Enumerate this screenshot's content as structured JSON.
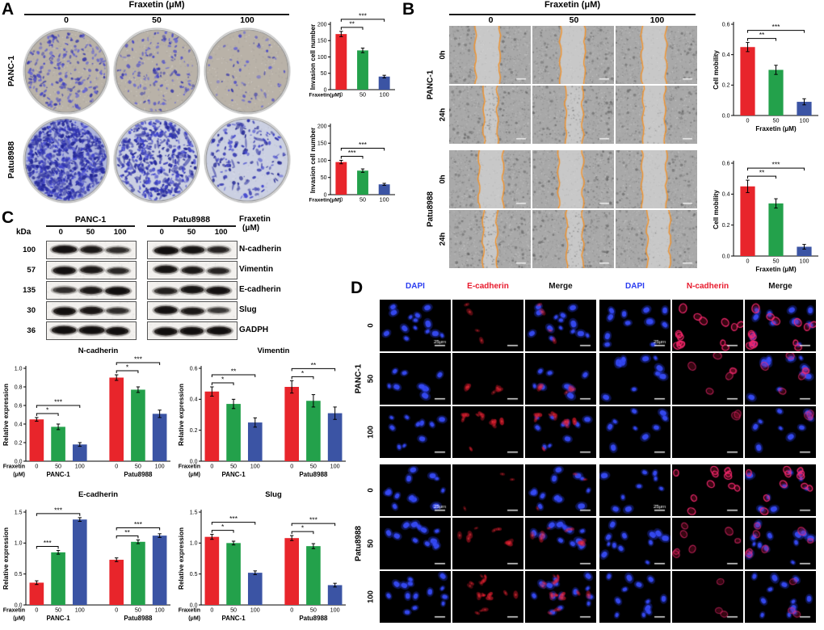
{
  "colors": {
    "bar_red": "#e8252b",
    "bar_green": "#23a14b",
    "bar_blue": "#3b54a4",
    "dapi_blue": "#2a3cf0",
    "marker_red": "#e8192c",
    "wound_orange": "#f2932c"
  },
  "doses": [
    "0",
    "50",
    "100"
  ],
  "cell_lines": [
    "PANC-1",
    "Patu8988"
  ],
  "panelA": {
    "label": "A",
    "title": "Fraxetin (μM)",
    "rows": [
      "PANC-1",
      "Patu8988"
    ]
  },
  "panelB": {
    "label": "B",
    "title": "Fraxetin (μM)",
    "timepoints": [
      "0h",
      "24h"
    ]
  },
  "panelC": {
    "label": "C",
    "col_headers": [
      "PANC-1",
      "Patu8988"
    ],
    "fraxetin_label": [
      "Fraxetin",
      "(μM)"
    ],
    "kda_label": "kDa",
    "lanes": [
      "0",
      "50",
      "100"
    ],
    "blots": [
      {
        "kda": "100",
        "protein": "N-cadherin",
        "intensity": [
          [
            0.85,
            0.7,
            0.45
          ],
          [
            0.9,
            0.8,
            0.55
          ]
        ]
      },
      {
        "kda": "57",
        "protein": "Vimentin",
        "intensity": [
          [
            0.85,
            0.7,
            0.5
          ],
          [
            0.8,
            0.7,
            0.55
          ]
        ]
      },
      {
        "kda": "135",
        "protein": "E-cadherin",
        "intensity": [
          [
            0.45,
            0.7,
            0.9
          ],
          [
            0.6,
            0.8,
            0.85
          ]
        ]
      },
      {
        "kda": "30",
        "protein": "Slug",
        "intensity": [
          [
            0.9,
            0.75,
            0.45
          ],
          [
            0.85,
            0.7,
            0.35
          ]
        ]
      },
      {
        "kda": "36",
        "protein": "GADPH",
        "intensity": [
          [
            0.9,
            0.9,
            0.9
          ],
          [
            0.9,
            0.9,
            0.9
          ]
        ]
      }
    ]
  },
  "panelD": {
    "label": "D",
    "col_headers": [
      {
        "label": "DAPI",
        "color": "#2a3cf0"
      },
      {
        "label": "E-cadherin",
        "color": "#e8192c"
      },
      {
        "label": "Merge",
        "color": "#111111"
      },
      {
        "label": "DAPI",
        "color": "#2a3cf0"
      },
      {
        "label": "N-cadherin",
        "color": "#e8192c"
      },
      {
        "label": "Merge",
        "color": "#111111"
      }
    ],
    "scale_label": "25μm"
  },
  "chart_data": [
    {
      "id": "invasion-panc1",
      "type": "bar",
      "cell_line": "PANC-1",
      "ylabel": "Invasion cell number",
      "ylim": [
        0,
        200
      ],
      "yticks": [
        "0",
        "50",
        "100",
        "150",
        "200"
      ],
      "categories": [
        "0",
        "50",
        "100"
      ],
      "values": [
        170,
        120,
        40
      ],
      "errors": [
        8,
        7,
        4
      ],
      "xlabel": "Fraxetin(μM)",
      "xlabel_pos": "inline",
      "sig": [
        {
          "a": 0,
          "b": 1,
          "label": "**"
        },
        {
          "a": 0,
          "b": 2,
          "label": "***"
        }
      ]
    },
    {
      "id": "invasion-patu8988",
      "type": "bar",
      "cell_line": "Patu8988",
      "ylabel": "Invasion cell number",
      "ylim": [
        0,
        200
      ],
      "yticks": [
        "0",
        "50",
        "100",
        "150",
        "200"
      ],
      "categories": [
        "0",
        "50",
        "100"
      ],
      "values": [
        95,
        70,
        30
      ],
      "errors": [
        5,
        5,
        3
      ],
      "xlabel": "Fraxetin(μM)",
      "xlabel_pos": "inline",
      "sig": [
        {
          "a": 0,
          "b": 1,
          "label": "***"
        },
        {
          "a": 0,
          "b": 2,
          "label": "***"
        }
      ]
    },
    {
      "id": "mobility-panc1",
      "type": "bar",
      "cell_line": "PANC-1",
      "ylabel": "Cell mobility",
      "ylim": [
        0,
        0.6
      ],
      "yticks": [
        "0.0",
        "0.2",
        "0.4",
        "0.6"
      ],
      "categories": [
        "0",
        "50",
        "100"
      ],
      "values": [
        0.45,
        0.3,
        0.09
      ],
      "errors": [
        0.03,
        0.03,
        0.02
      ],
      "xlabel": "Fraxetin (μM)",
      "xlabel_pos": "below",
      "sig": [
        {
          "a": 0,
          "b": 1,
          "label": "**"
        },
        {
          "a": 0,
          "b": 2,
          "label": "***"
        }
      ]
    },
    {
      "id": "mobility-patu8988",
      "type": "bar",
      "cell_line": "Patu8988",
      "ylabel": "Cell mobility",
      "ylim": [
        0,
        0.6
      ],
      "yticks": [
        "0.0",
        "0.2",
        "0.4",
        "0.6"
      ],
      "categories": [
        "0",
        "50",
        "100"
      ],
      "values": [
        0.45,
        0.34,
        0.06
      ],
      "errors": [
        0.04,
        0.03,
        0.015
      ],
      "xlabel": "Fraxetin (μM)",
      "xlabel_pos": "below",
      "sig": [
        {
          "a": 0,
          "b": 1,
          "label": "**"
        },
        {
          "a": 0,
          "b": 2,
          "label": "***"
        }
      ]
    },
    {
      "id": "expr-n-cadherin",
      "type": "bar",
      "title": "N-cadherin",
      "ylabel": "Relative expression",
      "ylim": [
        0,
        1.0
      ],
      "yticks": [
        "0.0",
        "0.2",
        "0.4",
        "0.6",
        "0.8",
        "1.0"
      ],
      "categories": [
        "0",
        "50",
        "100"
      ],
      "xlabel_lines": [
        "Fraxetin",
        "(μM)"
      ],
      "groups": [
        {
          "name": "PANC-1",
          "values": [
            0.45,
            0.37,
            0.18
          ],
          "errors": [
            0.02,
            0.03,
            0.02
          ],
          "sig": [
            {
              "a": 0,
              "b": 1,
              "label": "*"
            },
            {
              "a": 0,
              "b": 2,
              "label": "***"
            }
          ]
        },
        {
          "name": "Patu8988",
          "values": [
            0.9,
            0.77,
            0.51
          ],
          "errors": [
            0.03,
            0.03,
            0.04
          ],
          "sig": [
            {
              "a": 0,
              "b": 1,
              "label": "*"
            },
            {
              "a": 0,
              "b": 2,
              "label": "***"
            }
          ]
        }
      ]
    },
    {
      "id": "expr-vimentin",
      "type": "bar",
      "title": "Vimentin",
      "ylabel": "Relative expression",
      "ylim": [
        0,
        0.6
      ],
      "yticks": [
        "0.0",
        "0.2",
        "0.4",
        "0.6"
      ],
      "categories": [
        "0",
        "50",
        "100"
      ],
      "xlabel_lines": [
        "Fraxetin",
        "(μM)"
      ],
      "groups": [
        {
          "name": "PANC-1",
          "values": [
            0.45,
            0.37,
            0.25
          ],
          "errors": [
            0.03,
            0.03,
            0.03
          ],
          "sig": [
            {
              "a": 0,
              "b": 1,
              "label": "*"
            },
            {
              "a": 0,
              "b": 2,
              "label": "**"
            }
          ]
        },
        {
          "name": "Patu8988",
          "values": [
            0.48,
            0.39,
            0.31
          ],
          "errors": [
            0.04,
            0.04,
            0.04
          ],
          "sig": [
            {
              "a": 0,
              "b": 1,
              "label": "*"
            },
            {
              "a": 0,
              "b": 2,
              "label": "**"
            }
          ]
        }
      ]
    },
    {
      "id": "expr-e-cadherin",
      "type": "bar",
      "title": "E-cadherin",
      "ylabel": "Relative expression",
      "ylim": [
        0,
        1.5
      ],
      "yticks": [
        "0.0",
        "0.5",
        "1.0",
        "1.5"
      ],
      "categories": [
        "0",
        "50",
        "100"
      ],
      "xlabel_lines": [
        "Fraxetin",
        "(μM)"
      ],
      "groups": [
        {
          "name": "PANC-1",
          "values": [
            0.36,
            0.85,
            1.38
          ],
          "errors": [
            0.03,
            0.03,
            0.03
          ],
          "sig": [
            {
              "a": 0,
              "b": 1,
              "label": "***"
            },
            {
              "a": 0,
              "b": 2,
              "label": "***"
            }
          ]
        },
        {
          "name": "Patu8988",
          "values": [
            0.73,
            1.02,
            1.12
          ],
          "errors": [
            0.03,
            0.03,
            0.03
          ],
          "sig": [
            {
              "a": 0,
              "b": 1,
              "label": "**"
            },
            {
              "a": 0,
              "b": 2,
              "label": "***"
            }
          ]
        }
      ]
    },
    {
      "id": "expr-slug",
      "type": "bar",
      "title": "Slug",
      "ylabel": "Relative expression",
      "ylim": [
        0,
        1.5
      ],
      "yticks": [
        "0.0",
        "0.5",
        "1.0",
        "1.5"
      ],
      "categories": [
        "0",
        "50",
        "100"
      ],
      "xlabel_lines": [
        "Fraxetin",
        "(μM)"
      ],
      "groups": [
        {
          "name": "PANC-1",
          "values": [
            1.1,
            1.0,
            0.52
          ],
          "errors": [
            0.04,
            0.03,
            0.03
          ],
          "sig": [
            {
              "a": 0,
              "b": 1,
              "label": "*"
            },
            {
              "a": 0,
              "b": 2,
              "label": "***"
            }
          ]
        },
        {
          "name": "Patu8988",
          "values": [
            1.08,
            0.95,
            0.32
          ],
          "errors": [
            0.04,
            0.04,
            0.03
          ],
          "sig": [
            {
              "a": 0,
              "b": 1,
              "label": "*"
            },
            {
              "a": 0,
              "b": 2,
              "label": "***"
            }
          ]
        }
      ]
    }
  ]
}
